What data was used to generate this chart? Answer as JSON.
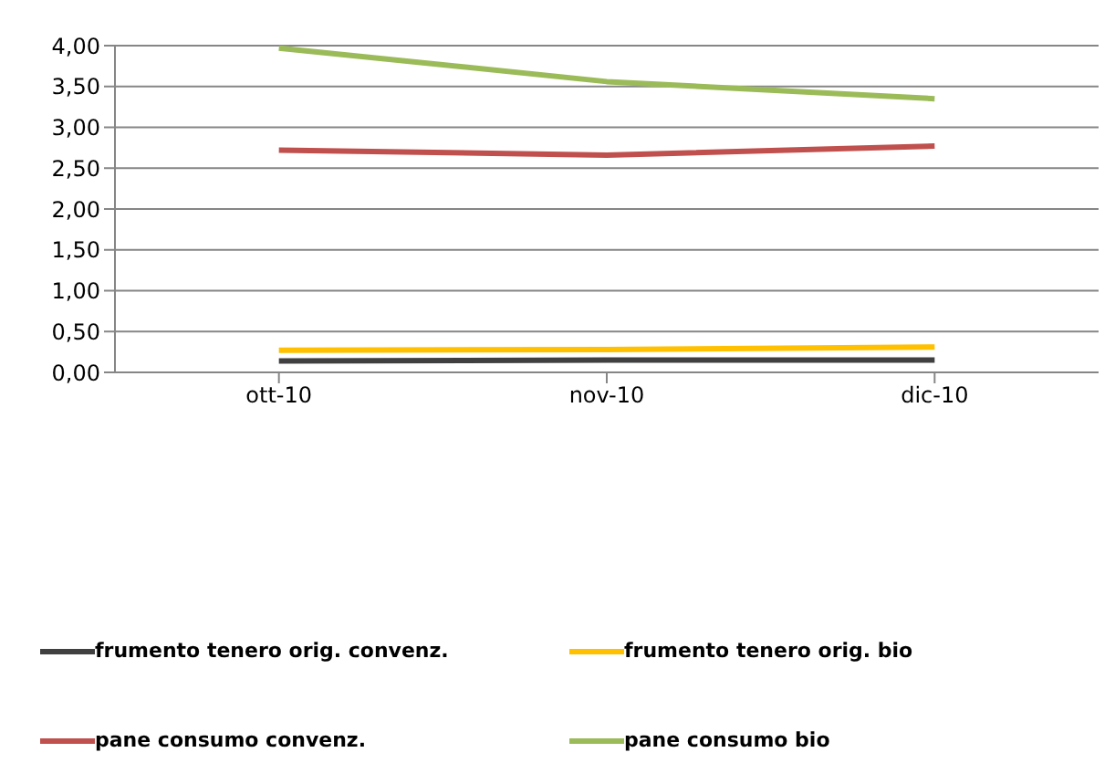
{
  "chart_data": {
    "type": "line",
    "categories": [
      "ott-10",
      "nov-10",
      "dic-10"
    ],
    "series": [
      {
        "name": "frumento tenero orig. convenz.",
        "color": "#404040",
        "values": [
          0.14,
          0.15,
          0.15
        ]
      },
      {
        "name": "frumento tenero orig. bio",
        "color": "#ffc000",
        "values": [
          0.27,
          0.28,
          0.31
        ]
      },
      {
        "name": "pane consumo convenz.",
        "color": "#c0504d",
        "values": [
          2.72,
          2.66,
          2.77
        ]
      },
      {
        "name": "pane consumo bio",
        "color": "#9bbb59",
        "values": [
          3.97,
          3.56,
          3.35
        ]
      }
    ],
    "ylim": [
      0,
      4
    ],
    "yticks": [
      {
        "value": 0,
        "label": "0,00"
      },
      {
        "value": 0.5,
        "label": "0,50"
      },
      {
        "value": 1,
        "label": "1,00"
      },
      {
        "value": 1.5,
        "label": "1,50"
      },
      {
        "value": 2,
        "label": "2,00"
      },
      {
        "value": 2.5,
        "label": "2,50"
      },
      {
        "value": 3,
        "label": "3,00"
      },
      {
        "value": 3.5,
        "label": "3,50"
      },
      {
        "value": 4,
        "label": "4,00"
      }
    ],
    "grid": "y",
    "legend": "bottom",
    "marker": "none",
    "line_style": "solid"
  }
}
